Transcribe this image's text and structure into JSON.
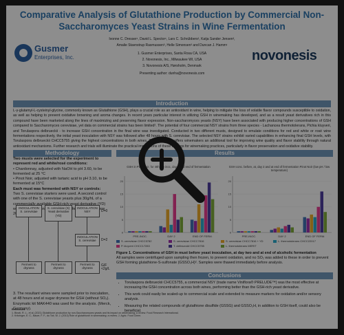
{
  "poster": {
    "title_line1": "Comparative Analysis of Glutathione Production by Commercial Non-",
    "title_line2": "Saccharomyces Yeast Strains in Wine Fermentation",
    "authors_line1": "Ivonne C. Dresser¹, David L. Spector¹, Lars C. Schrübbers², Katja Sander Jensen³,",
    "authors_line2": "Amalie Stavnstrup Rasmussen³, Helle Simonsen³ and Duncan J. Hamm¹",
    "affil_1": "1. Gusmer Enterprises, Santa Rosa CA, USA",
    "affil_2": "2. Novonesis, Inc., Milwaukee WI, USA",
    "affil_3": "3. Novonesis A/S, Hørsholm, Denmark",
    "presenting": "Presenting author: dunha@novonesis.com",
    "logo_left_name": "Gusmer",
    "logo_left_sub": "Enterprises, Inc.",
    "logo_right": "novonesis"
  },
  "sections": {
    "introduction": "Introduction",
    "methodology": "Methodology",
    "results": "Results",
    "conclusions": "Conclusions"
  },
  "intro_text": "L-γ-glutamyl-L-cysteinyl-glycine, commonly known as Glutathione (GSH), plays a crucial role as an antioxidant in wine, helping to mitigate the loss of volatile flavor compounds susceptible to oxidation, as well as helping to prevent oxidative browning and aroma changes. In recent years particular interest in utilizing GSH in winemaking has developed, and as a result yeast derivatives rich in this compound have been marketed along the lines of maximizing and preserving flavor expression. Non-saccharomyces yeasts (NSY) have been associated with producing higher concentrations of GSH compared to Saccharomyces cerevisiae, yet data on commercial strains has been limited¹. The potential of four commercial NSY strains from three species - Lachancea thermotolerans, Pichia kluyveri, and Torulaspora delbrueckii - to increase GSH concentration in the final wine was investigated. Conducted in two different musts, designed to emulate conditions for red and white or rosé wine fermentations respectively, the initial yeast inoculation with NSY was followed after 48 hours with S. cerevisiae. The selected NSY strains exhibit varied capabilities in enhancing final GSH levels, with Torulaspora delbrueckii CHCC5755 giving the highest concentrations in both wines. This potentially offers winemakers an additional tool for improving wine quality and flavor stability through natural antioxidant mechanisms. Further research and trials will illuminate the practical implications of these findings for winemaking practices, particularly in flavor preservation and oxidative stability.",
  "methodology": {
    "p1": "Two musts were selected for the experiment to represent red and white/rosé conditions:",
    "b1": "Chardonnay, adjusted with NaOH to pH 3.60, to be fermented at 25 °C",
    "b2": "Pinot Noir, adjusted with tartaric acid to pH 3.10, to be fermented at 15°C",
    "p2": "Each must was fermented with NSY or controls:",
    "p3": "Two S. cerevisiae starters were used. A second control with one of the S. cerevisiae yeasts plus 30g/hL of a commercially available GSH-rich yeast derivative (YD) was included. Run in duplicate, all fermentations were 200ml in size.",
    "p4": "3. The resultant wines were sampled prior to inoculation, at 48 hours and at sugar dryness for GSH (without SO₂). Enzymatic kit MAK440 was used for the analysis. (Merck, Germany)."
  },
  "flowchart": {
    "box_inoc_sc": "INOCULATION S. cerevisiae",
    "box_sc_gsh": "S. cerevisiae (S) Yeast derivative (YD)",
    "box_inoc_nsy": "INOCULATION NSY",
    "box_inoc_sc2": "INOCULATION S. cerevisiae",
    "box_ferm1": "Ferment to dryness",
    "box_ferm2": "Ferment to dryness",
    "box_ferm3": "Ferment to dryness",
    "label_d0": "D=0",
    "label_d2": "D=2",
    "label_end": "G/F <2g/L"
  },
  "chart_data": [
    {
      "type": "bar",
      "title": "GSH in Pinot noir, for 48h pre inoc, day 2 and end of fermentation",
      "categories": [
        "PRE-INOC.",
        "DAY 2",
        "END OF FERM."
      ],
      "ylim": [
        0,
        22
      ],
      "series": [
        {
          "name": "S. cerevisiae CHCC5782",
          "values": [
            0.5,
            2.5,
            5.0
          ]
        },
        {
          "name": "S. cerevisiae CHCC7816",
          "values": [
            0.5,
            2.0,
            4.5
          ]
        },
        {
          "name": "S. cerevisiae CHCC7816 + YD",
          "values": [
            0.5,
            9.0,
            11.0
          ]
        },
        {
          "name": "L. thermotolerans CHCC22017",
          "values": [
            0.5,
            3.0,
            5.5
          ]
        },
        {
          "name": "P. kluyveri CHCC17283",
          "values": [
            0.5,
            15.0,
            14.5
          ]
        },
        {
          "name": "T. delbrueckii CHCC5755",
          "values": [
            0.5,
            5.0,
            19.5
          ]
        },
        {
          "name": "L. thermotolerans MERIT",
          "values": [
            0.5,
            6.0,
            13.0
          ]
        }
      ]
    },
    {
      "type": "bar",
      "title": "GSH conc. before, at, day 2 and at end of fermentation Pinot Noir (low pH / low temperature)",
      "categories": [
        "PRE-INOC.",
        "DAY 2",
        "END OF FERM."
      ],
      "ylim": [
        0,
        22
      ],
      "series": [
        {
          "name": "S. cerevisiae CHCC5782",
          "values": [
            0.5,
            1.0,
            6.0
          ]
        },
        {
          "name": "S. cerevisiae CHCC7816",
          "values": [
            0.5,
            1.5,
            5.5
          ]
        },
        {
          "name": "S. cerevisiae CHCC7816 + YD",
          "values": [
            0.5,
            2.0,
            7.0
          ]
        },
        {
          "name": "L. thermotolerans CHCC22017",
          "values": [
            0.5,
            1.5,
            6.0
          ]
        },
        {
          "name": "P. kluyveri CHCC17283",
          "values": [
            0.5,
            2.5,
            10.0
          ]
        },
        {
          "name": "T. delbrueckii CHCC5755",
          "values": [
            0.5,
            3.0,
            16.0
          ]
        },
        {
          "name": "L. thermotolerans MERIT",
          "values": [
            0.5,
            2.0,
            8.0
          ]
        }
      ]
    }
  ],
  "series_colors": [
    "#3e6fb0",
    "#9b2fa8",
    "#e6a62a",
    "#2aa6c7",
    "#e03c8c",
    "#4a3c9a",
    "#7aa63a"
  ],
  "figure_caption_bold": "Figure 1. Concentrations of GSH in must before yeast inoculation, at day two and at end of alcoholic fermentation",
  "figure_caption": "All samples were centrifuged upon sampling then frozen, to prevent oxidation, and no SO₂ was added to these in order to prevent GSH forming glutathione-S-sulfonate (GSSO₃H)². Samples were thawed immediately before analysis.",
  "conclusions": [
    "Torulaspora delbrueckii CHCC5755, a commercial NSY (trade name Viniflora® PRELUDE™) was the most effective at increasing the GSH concentration across both wines, performing better than the GSH-rich yeast derivative.",
    "This work could easily be scaled-up to commercial scale and extended to measure markers for oxidation and/or sensory analysis.",
    "Measuring the related compounds of glutathione disulfide (GSSG) and GSSO₃H, in addition to GSH itself, could also be beneficial."
  ],
  "references": {
    "heading": "References",
    "r1": "1. Binati, R. L., et al. (2021) Glutathione production by non-Saccharomyces yeasts and its impact on winemaking: A review. Food Research International.",
    "r2": "2. Kritzinger, E. C., Bauer, F. F., du Toit, W. J. (2013) Role of glutathione in winemaking: a review. J. Agric. Food Chem."
  }
}
